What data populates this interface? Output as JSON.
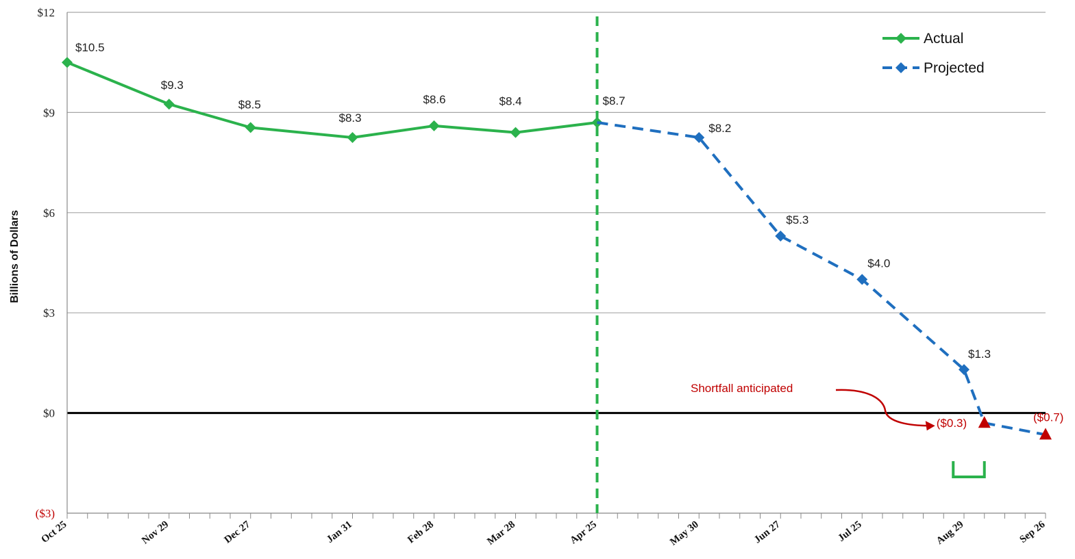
{
  "chart_data": {
    "type": "line",
    "ylabel": "Billions of Dollars",
    "ylim": [
      -3,
      12
    ],
    "yticks": [
      {
        "value": 12,
        "label": "$12"
      },
      {
        "value": 9,
        "label": "$9"
      },
      {
        "value": 6,
        "label": "$6"
      },
      {
        "value": 3,
        "label": "$3"
      },
      {
        "value": 0,
        "label": "$0"
      },
      {
        "value": -3,
        "label": "($3)"
      }
    ],
    "xaxis": {
      "start": "Oct 25",
      "end": "Sep 26",
      "unit": "weeks"
    },
    "xticks": [
      {
        "label": "Oct 25",
        "week": 0
      },
      {
        "label": "Nov 29",
        "week": 5
      },
      {
        "label": "Dec 27",
        "week": 9
      },
      {
        "label": "Jan 31",
        "week": 14
      },
      {
        "label": "Feb 28",
        "week": 18
      },
      {
        "label": "Mar 28",
        "week": 22
      },
      {
        "label": "Apr 25",
        "week": 26
      },
      {
        "label": "May 30",
        "week": 31
      },
      {
        "label": "Jun 27",
        "week": 35
      },
      {
        "label": "Jul 25",
        "week": 39
      },
      {
        "label": "Aug 29",
        "week": 44
      },
      {
        "label": "Sep 26",
        "week": 48
      }
    ],
    "series": [
      {
        "name": "Actual",
        "color": "#2bb24c",
        "style": "solid",
        "points": [
          {
            "week": 0,
            "value": 10.5,
            "label": "$10.5"
          },
          {
            "week": 5,
            "value": 9.25,
            "label": "$9.3"
          },
          {
            "week": 9,
            "value": 8.55,
            "label": "$8.5"
          },
          {
            "week": 14,
            "value": 8.25,
            "label": "$8.3"
          },
          {
            "week": 18,
            "value": 8.6,
            "label": "$8.6"
          },
          {
            "week": 22,
            "value": 8.4,
            "label": "$8.4"
          },
          {
            "week": 26,
            "value": 8.7,
            "label": "$8.7"
          }
        ]
      },
      {
        "name": "Projected",
        "color": "#1f6fbf",
        "style": "dashed",
        "points": [
          {
            "week": 26,
            "value": 8.7
          },
          {
            "week": 31,
            "value": 8.25,
            "label": "$8.2"
          },
          {
            "week": 35,
            "value": 5.3,
            "label": "$5.3"
          },
          {
            "week": 39,
            "value": 4.0,
            "label": "$4.0"
          },
          {
            "week": 44,
            "value": 1.3,
            "label": "$1.3"
          },
          {
            "week": 45,
            "value": -0.3,
            "label": "($0.3)",
            "marker": "triangle"
          },
          {
            "week": 48,
            "value": -0.65,
            "label": "($0.7)",
            "marker": "triangle"
          }
        ]
      }
    ],
    "vline": {
      "week": 26,
      "color": "#2bb24c",
      "style": "dashed"
    },
    "annotation": {
      "text": "Shortfall anticipated",
      "target_week": 45,
      "target_value": -0.3,
      "color": "#c00000"
    },
    "bracket": {
      "from_week": 43,
      "to_week": 45,
      "color": "#2bb24c"
    },
    "legend": {
      "placement": "top-right",
      "entries": [
        "Actual",
        "Projected"
      ]
    },
    "grid": true
  }
}
